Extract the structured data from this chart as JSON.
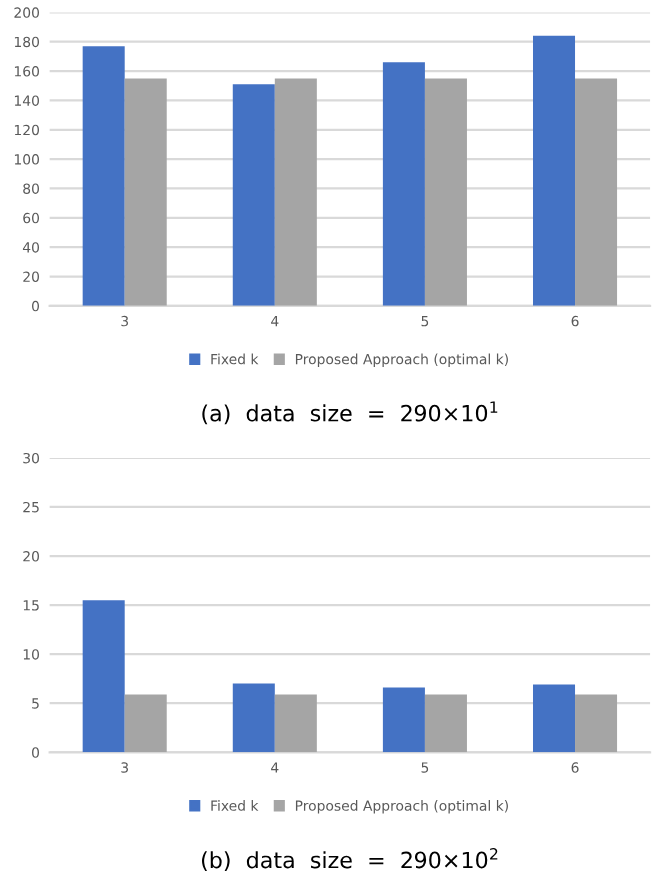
{
  "chart_data": [
    {
      "type": "bar",
      "title": "(a)  data  size  =  290×10$^{1}$",
      "categories": [
        "3",
        "4",
        "5",
        "6"
      ],
      "series": [
        {
          "name": "Fixed k",
          "color": "#4472c4",
          "values": [
            177,
            151,
            166,
            184
          ]
        },
        {
          "name": "Proposed Approach (optimal k)",
          "color": "#a5a5a5",
          "values": [
            155,
            155,
            155,
            155
          ]
        }
      ],
      "ylim": [
        0,
        200
      ],
      "yticks": [
        0,
        20,
        40,
        60,
        80,
        100,
        120,
        140,
        160,
        180,
        200
      ],
      "grid": "y",
      "legend": "bottom"
    },
    {
      "type": "bar",
      "title": "(b)  data  size  =  290×10$^{2}$",
      "categories": [
        "3",
        "4",
        "5",
        "6"
      ],
      "series": [
        {
          "name": "Fixed k",
          "color": "#4472c4",
          "values": [
            15.5,
            7,
            6.6,
            6.9
          ]
        },
        {
          "name": "Proposed Approach (optimal k)",
          "color": "#a5a5a5",
          "values": [
            5.9,
            5.9,
            5.9,
            5.9
          ]
        }
      ],
      "ylim": [
        0,
        30
      ],
      "yticks": [
        0,
        5,
        10,
        15,
        20,
        25,
        30
      ],
      "grid": "y",
      "legend": "bottom"
    }
  ]
}
